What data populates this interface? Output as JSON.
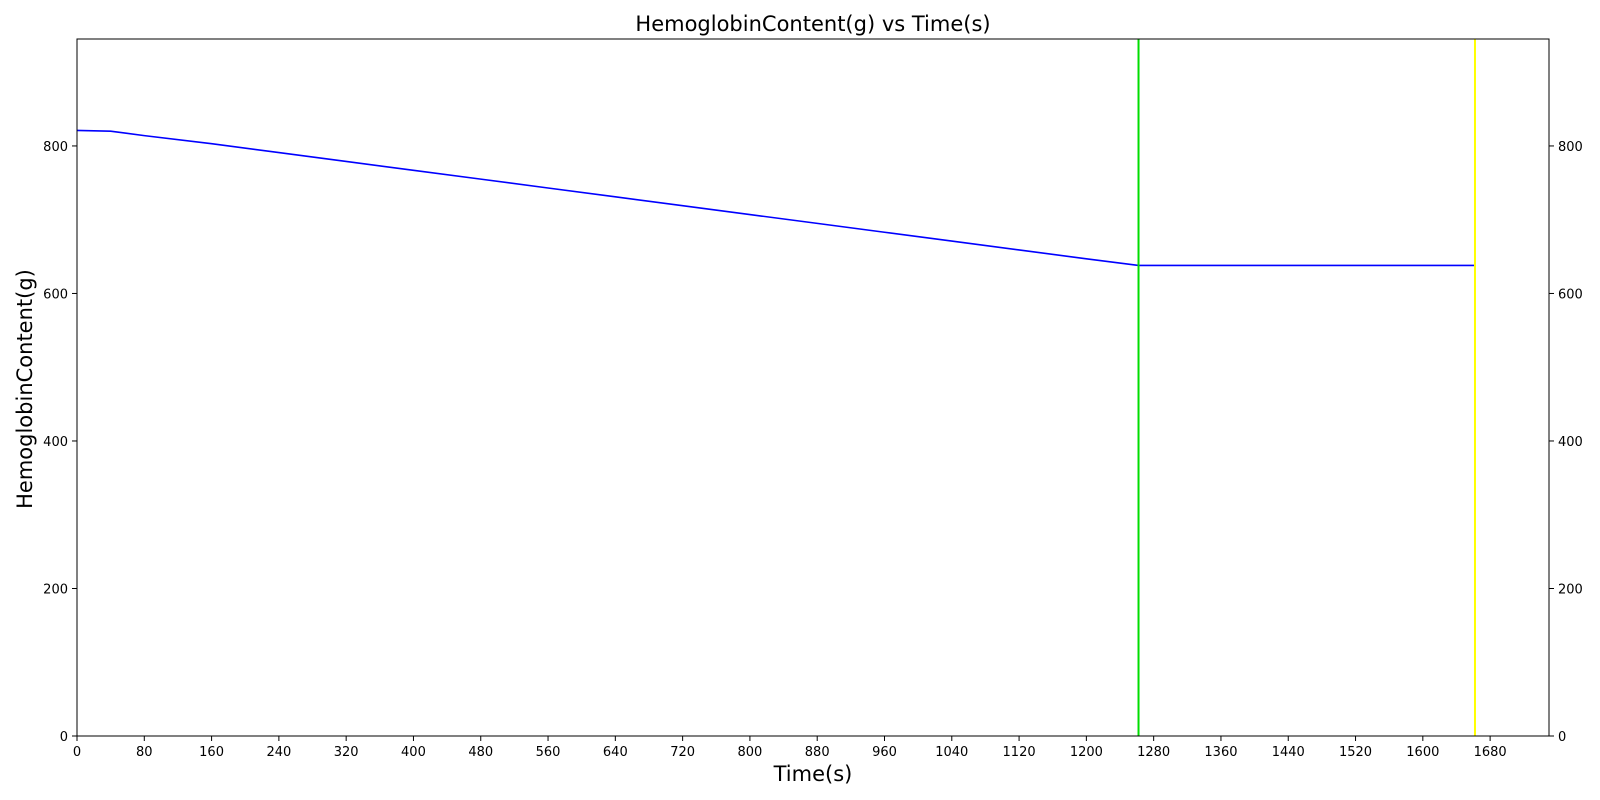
{
  "chart_data": {
    "type": "line",
    "title": "HemoglobinContent(g) vs Time(s)",
    "xlabel": "Time(s)",
    "ylabel": "HemoglobinContent(g)",
    "xlim": [
      0,
      1750
    ],
    "ylim": [
      0,
      945
    ],
    "x_ticks": [
      0,
      80,
      160,
      240,
      320,
      400,
      480,
      560,
      640,
      720,
      800,
      880,
      960,
      1040,
      1120,
      1200,
      1280,
      1360,
      1440,
      1520,
      1600,
      1680
    ],
    "y_ticks": [
      0,
      200,
      400,
      600,
      800
    ],
    "right_y_axis": true,
    "grid": false,
    "series": [
      {
        "color": "#0000ff",
        "x": [
          0,
          40,
          80,
          160,
          240,
          320,
          400,
          480,
          560,
          640,
          720,
          800,
          880,
          960,
          1040,
          1120,
          1200,
          1262,
          1280,
          1360,
          1440,
          1520,
          1600,
          1662
        ],
        "y": [
          821,
          820,
          814,
          803,
          791,
          779,
          767,
          755,
          743,
          731,
          719,
          707,
          695,
          683,
          671,
          659,
          647,
          638,
          638,
          638,
          638,
          638,
          638,
          638
        ]
      }
    ],
    "vertical_lines": [
      {
        "x": 1262,
        "color": "#00dd00"
      },
      {
        "x": 1662,
        "color": "#ffff00"
      }
    ]
  }
}
